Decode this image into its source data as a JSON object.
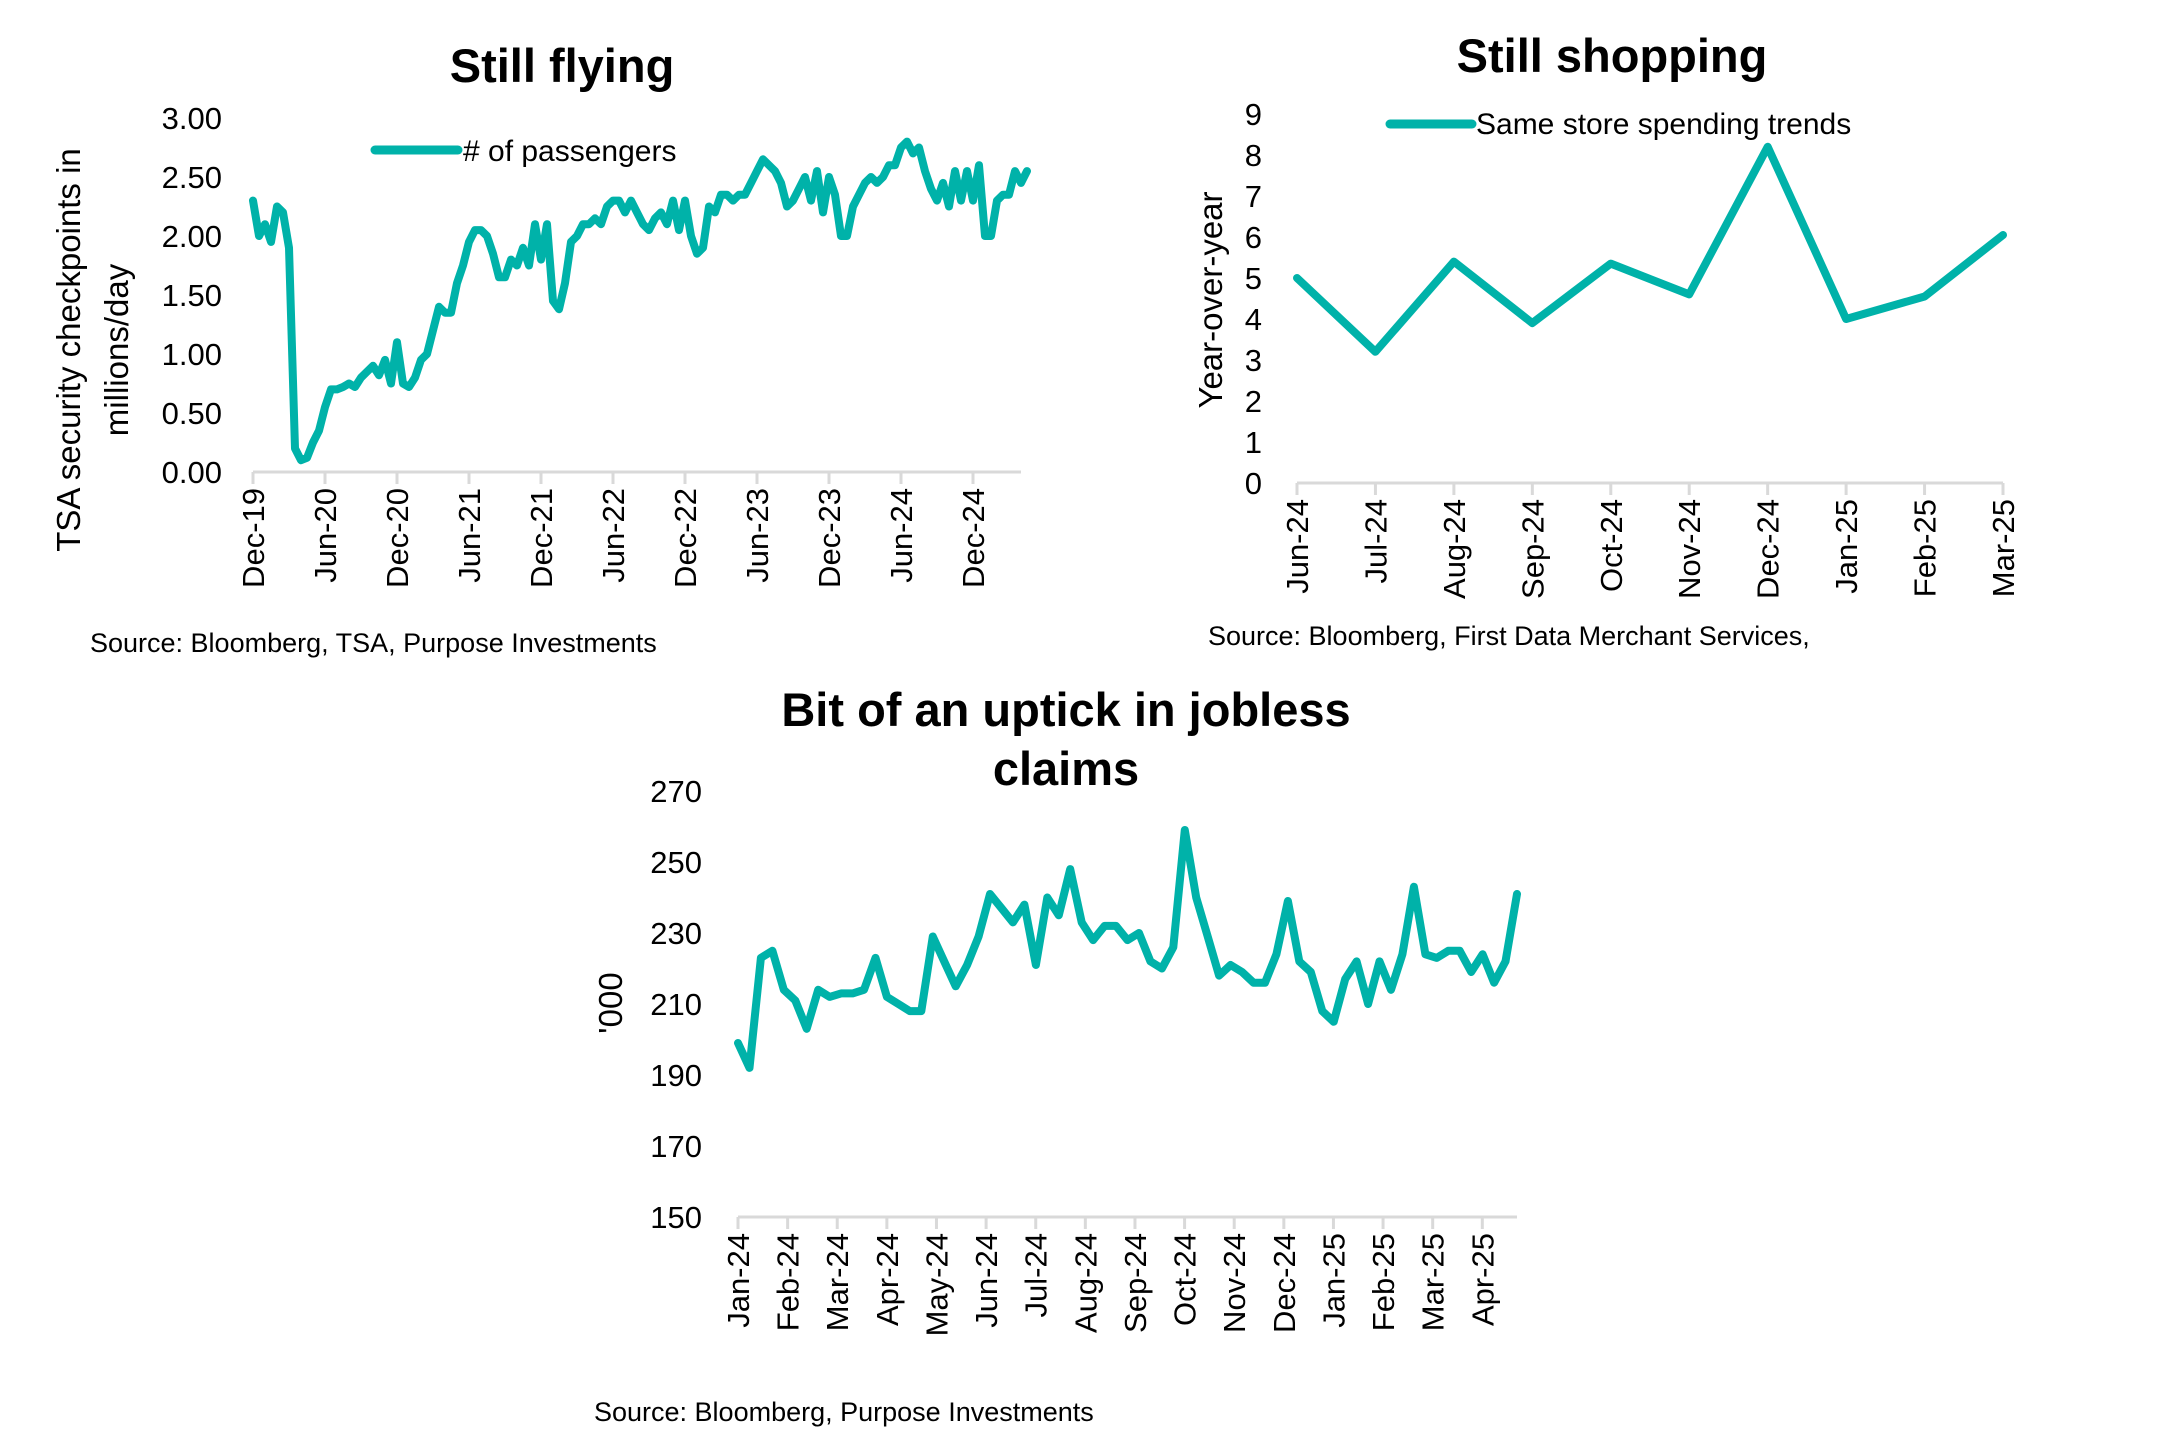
{
  "line_color": "#00b2a9",
  "axis_color": "#d9d9d9",
  "chart_data": [
    {
      "type": "line",
      "title": "Still flying",
      "ylabel": [
        "TSA security checkpoints in",
        "millions/day"
      ],
      "legend": "# of passengers",
      "legend_placement": "top",
      "source": "Source: Bloomberg, TSA, Purpose Investments",
      "ylim": [
        0,
        3
      ],
      "yticks": [
        "0.00",
        "0.50",
        "1.00",
        "1.50",
        "2.00",
        "2.50",
        "3.00"
      ],
      "xticks": [
        "Dec-19",
        "Jun-20",
        "Dec-20",
        "Jun-21",
        "Dec-21",
        "Jun-22",
        "Dec-22",
        "Jun-23",
        "Dec-23",
        "Jun-24",
        "Dec-24"
      ],
      "x_period": "semi-monthly from Dec-19",
      "grid": false,
      "values": [
        2.3,
        2.0,
        2.1,
        1.95,
        2.25,
        2.2,
        1.9,
        0.2,
        0.1,
        0.12,
        0.25,
        0.35,
        0.55,
        0.7,
        0.7,
        0.72,
        0.75,
        0.72,
        0.8,
        0.85,
        0.9,
        0.82,
        0.95,
        0.75,
        1.1,
        0.75,
        0.72,
        0.8,
        0.95,
        1.0,
        1.2,
        1.4,
        1.35,
        1.35,
        1.6,
        1.75,
        1.95,
        2.05,
        2.05,
        2.0,
        1.85,
        1.65,
        1.65,
        1.8,
        1.75,
        1.9,
        1.75,
        2.1,
        1.8,
        2.1,
        1.45,
        1.38,
        1.6,
        1.95,
        2.0,
        2.1,
        2.1,
        2.15,
        2.1,
        2.25,
        2.3,
        2.3,
        2.2,
        2.3,
        2.2,
        2.1,
        2.05,
        2.15,
        2.2,
        2.1,
        2.3,
        2.05,
        2.3,
        2.0,
        1.85,
        1.9,
        2.25,
        2.2,
        2.35,
        2.35,
        2.3,
        2.35,
        2.35,
        2.45,
        2.55,
        2.65,
        2.6,
        2.55,
        2.45,
        2.25,
        2.3,
        2.4,
        2.5,
        2.3,
        2.55,
        2.2,
        2.5,
        2.35,
        2.0,
        2.0,
        2.25,
        2.35,
        2.45,
        2.5,
        2.45,
        2.5,
        2.6,
        2.6,
        2.75,
        2.8,
        2.7,
        2.75,
        2.55,
        2.4,
        2.3,
        2.45,
        2.25,
        2.55,
        2.3,
        2.55,
        2.3,
        2.6,
        2.0,
        2.0,
        2.3,
        2.35,
        2.35,
        2.55,
        2.45,
        2.55
      ]
    },
    {
      "type": "line",
      "title": "Still shopping",
      "ylabel": "Year-over-year",
      "legend": "Same store spending trends",
      "legend_placement": "top",
      "source": "Source: Bloomberg, First Data Merchant Services,",
      "ylim": [
        0,
        9
      ],
      "yticks": [
        "0",
        "1",
        "2",
        "3",
        "4",
        "5",
        "6",
        "7",
        "8",
        "9"
      ],
      "categories": [
        "Jun-24",
        "Jul-24",
        "Aug-24",
        "Sep-24",
        "Oct-24",
        "Nov-24",
        "Dec-24",
        "Jan-25",
        "Feb-25",
        "Mar-25"
      ],
      "grid": false,
      "values": [
        5.0,
        3.2,
        5.4,
        3.9,
        5.35,
        4.6,
        8.2,
        4.0,
        4.55,
        6.05
      ]
    },
    {
      "type": "line",
      "title": [
        "Bit of an uptick in jobless",
        "claims"
      ],
      "ylabel": "'000",
      "source": "Source: Bloomberg, Purpose Investments",
      "ylim": [
        150,
        270
      ],
      "yticks": [
        "150",
        "170",
        "190",
        "210",
        "230",
        "250",
        "270"
      ],
      "xticks": [
        "Jan-24",
        "Feb-24",
        "Mar-24",
        "Apr-24",
        "May-24",
        "Jun-24",
        "Jul-24",
        "Aug-24",
        "Sep-24",
        "Oct-24",
        "Nov-24",
        "Dec-24",
        "Jan-25",
        "Feb-25",
        "Mar-25",
        "Apr-25"
      ],
      "x_period": "weekly",
      "grid": false,
      "values": [
        199,
        192,
        223,
        225,
        214,
        211,
        203,
        214,
        212,
        213,
        213,
        214,
        223,
        212,
        210,
        208,
        208,
        229,
        222,
        215,
        221,
        229,
        241,
        237,
        233,
        238,
        221,
        240,
        235,
        248,
        233,
        228,
        232,
        232,
        228,
        230,
        222,
        220,
        226,
        259,
        240,
        229,
        218,
        221,
        219,
        216,
        216,
        224,
        239,
        222,
        219,
        208,
        205,
        217,
        222,
        210,
        222,
        214,
        224,
        243,
        224,
        223,
        225,
        225,
        219,
        224,
        216,
        222,
        241
      ]
    }
  ]
}
